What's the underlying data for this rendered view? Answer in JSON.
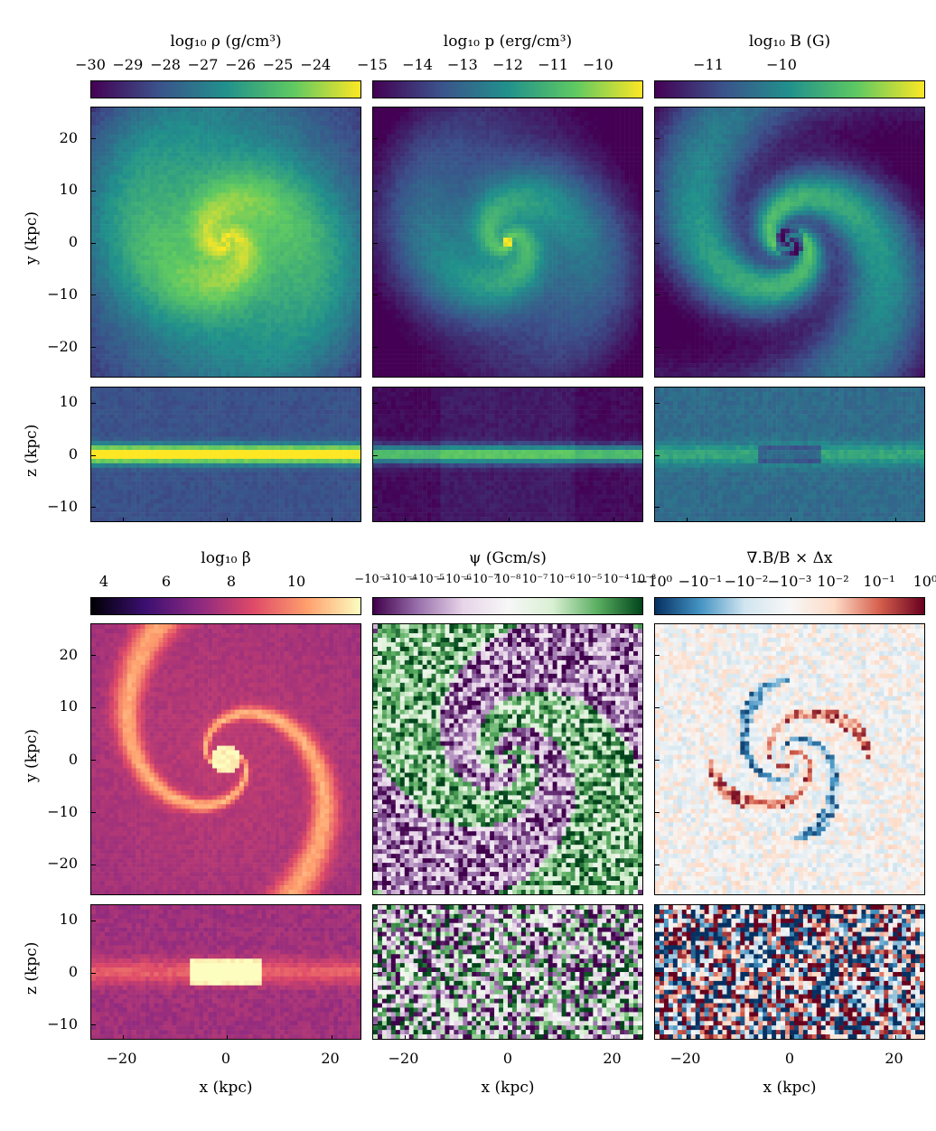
{
  "colorbars": [
    {
      "title": "log₁₀ ρ (g/cm³)",
      "ticks": [
        "−30",
        "−29",
        "−28",
        "−27",
        "−26",
        "−25",
        "−24"
      ],
      "cmap": "viridis"
    },
    {
      "title": "log₁₀ p (erg/cm³)",
      "ticks": [
        "−15",
        "−14",
        "−13",
        "−12",
        "−11",
        "−10"
      ],
      "cmap": "viridis"
    },
    {
      "title": "log₁₀ B (G)",
      "ticks": [
        "−11",
        "−10"
      ],
      "cmap": "viridis"
    },
    {
      "title": "log₁₀ β",
      "ticks": [
        "4",
        "6",
        "8",
        "10"
      ],
      "cmap": "magma"
    },
    {
      "title": "ψ (Gcm/s)",
      "ticks": [
        "−10⁻³",
        "−10⁻⁴",
        "−10⁻⁵",
        "−10⁻⁶",
        "−10⁻⁷",
        "10⁻⁸",
        "10⁻⁷",
        "10⁻⁶",
        "10⁻⁵",
        "10⁻⁴",
        "10⁻³"
      ],
      "cmap": "PRGn"
    },
    {
      "title": "∇.B/B × Δx",
      "ticks": [
        "−10⁰",
        "−10⁻¹",
        "−10⁻²",
        "−10⁻³",
        "10⁻²",
        "10⁻¹",
        "10⁰"
      ],
      "cmap": "RdBu"
    }
  ],
  "axes": {
    "ylabel_face": "y (kpc)",
    "ylabel_edge": "z (kpc)",
    "xlabel": "x (kpc)",
    "yticks_face": [
      "20",
      "10",
      "0",
      "−10",
      "−20"
    ],
    "yticks_edge": [
      "10",
      "0",
      "−10"
    ],
    "xticks": [
      "−20",
      "0",
      "20"
    ]
  },
  "colors": {
    "viridis": [
      "#440154",
      "#3b528b",
      "#21918c",
      "#5ec962",
      "#fde725"
    ],
    "magma": [
      "#000004",
      "#3b0f70",
      "#8c2981",
      "#de4968",
      "#fe9f6d",
      "#fcfdbf"
    ],
    "PRGn": [
      "#40004b",
      "#9970ab",
      "#e7d4e8",
      "#f7f7f7",
      "#d9f0d3",
      "#5aae61",
      "#00441b"
    ],
    "RdBu": [
      "#053061",
      "#4393c3",
      "#d1e5f0",
      "#f7f7f7",
      "#fddbc7",
      "#d6604d",
      "#67001f"
    ]
  }
}
